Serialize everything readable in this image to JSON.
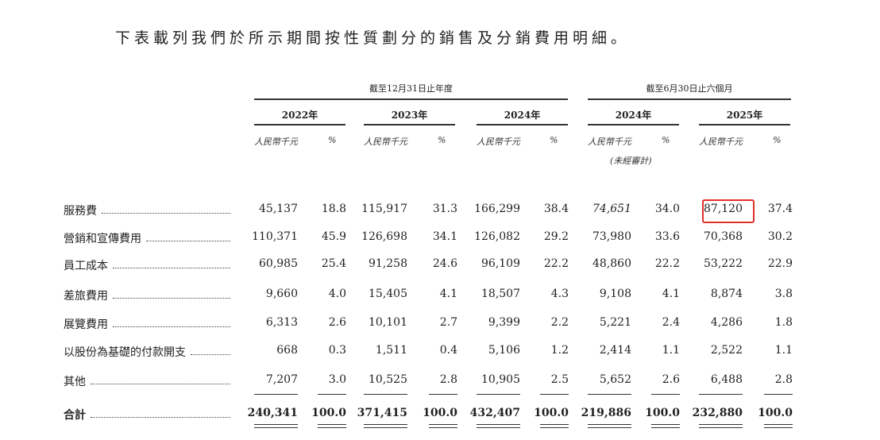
{
  "intro_text": "下表載列我們於所示期間按性質劃分的銷售及分銷費用明細。",
  "header": {
    "group_year": "截至12月31日止年度",
    "group_half": "截至6月30日止六個月",
    "years": [
      "2022年",
      "2023年",
      "2024年",
      "2024年",
      "2025年"
    ],
    "currency_label": "人民幣千元",
    "pct_label": "%",
    "unaudited_note": "(未經審計)"
  },
  "rows": [
    {
      "label": "服務費",
      "values": [
        "45,137",
        "18.8",
        "115,917",
        "31.3",
        "166,299",
        "38.4",
        "74,651",
        "34.0",
        "87,120",
        "37.4"
      ]
    },
    {
      "label": "營銷和宣傳費用",
      "values": [
        "110,371",
        "45.9",
        "126,698",
        "34.1",
        "126,082",
        "29.2",
        "73,980",
        "33.6",
        "70,368",
        "30.2"
      ]
    },
    {
      "label": "員工成本",
      "values": [
        "60,985",
        "25.4",
        "91,258",
        "24.6",
        "96,109",
        "22.2",
        "48,860",
        "22.2",
        "53,222",
        "22.9"
      ]
    },
    {
      "label": "差旅費用",
      "values": [
        "9,660",
        "4.0",
        "15,405",
        "4.1",
        "18,507",
        "4.3",
        "9,108",
        "4.1",
        "8,874",
        "3.8"
      ]
    },
    {
      "label": "展覽費用",
      "values": [
        "6,313",
        "2.6",
        "10,101",
        "2.7",
        "9,399",
        "2.2",
        "5,221",
        "2.4",
        "4,286",
        "1.8"
      ]
    },
    {
      "label": "以股份為基礎的付款開支",
      "values": [
        "668",
        "0.3",
        "1,511",
        "0.4",
        "5,106",
        "1.2",
        "2,414",
        "1.1",
        "2,522",
        "1.1"
      ]
    },
    {
      "label": "其他",
      "values": [
        "7,207",
        "3.0",
        "10,525",
        "2.8",
        "10,905",
        "2.5",
        "5,652",
        "2.6",
        "6,488",
        "2.8"
      ]
    }
  ],
  "total": {
    "label": "合計",
    "values": [
      "240,341",
      "100.0",
      "371,415",
      "100.0",
      "432,407",
      "100.0",
      "219,886",
      "100.0",
      "232,880",
      "100.0"
    ]
  },
  "highlight_color": "#e0302a"
}
